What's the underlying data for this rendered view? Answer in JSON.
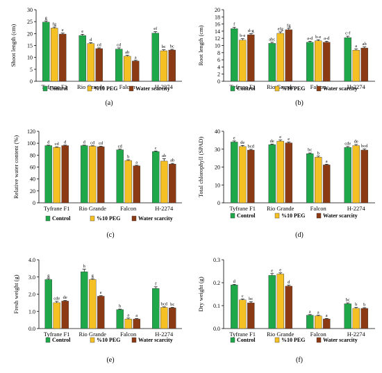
{
  "colors": {
    "control": "#1fa84a",
    "peg": "#f5c023",
    "water": "#8b3a14"
  },
  "chart_data": [
    {
      "type": "bar",
      "panel_label": "(a)",
      "ylabel": "Shoot length (cm)",
      "ylim": [
        0,
        30
      ],
      "yticks": [
        0,
        5,
        10,
        15,
        20,
        25,
        30
      ],
      "categories": [
        "Tyfrane F1",
        "Rio Grande",
        "Falcon",
        "H-2274"
      ],
      "series": [
        {
          "name": "Control",
          "values": [
            24.8,
            19.2,
            13.5,
            20.2
          ],
          "errors": [
            0.5,
            0.5,
            0.5,
            0.6
          ],
          "letters": [
            "g",
            "e",
            "cd",
            "ef"
          ]
        },
        {
          "name": "%10 PEG",
          "values": [
            22.3,
            15.8,
            10.5,
            12.8
          ],
          "errors": [
            0.4,
            0.4,
            0.4,
            0.4
          ],
          "letters": [
            "fg",
            "d",
            "ab",
            "bc"
          ]
        },
        {
          "name": "Water scarcity",
          "values": [
            19.8,
            13.7,
            8.5,
            13.1
          ],
          "errors": [
            0.4,
            0.3,
            0.3,
            0.3
          ],
          "letters": [
            "e",
            "cd",
            "a",
            "bc"
          ]
        }
      ]
    },
    {
      "type": "bar",
      "panel_label": "(b)",
      "ylabel": "Root length (cm)",
      "ylim": [
        0,
        20
      ],
      "yticks": [
        0,
        2,
        4,
        6,
        8,
        10,
        12,
        14,
        16,
        18,
        20
      ],
      "categories": [
        "Tyfrane F1",
        "Rio Grande",
        "Falcon",
        "H-2274"
      ],
      "series": [
        {
          "name": "Control",
          "values": [
            14.7,
            10.6,
            10.9,
            12.2
          ],
          "errors": [
            0.4,
            0.3,
            0.3,
            0.4
          ],
          "letters": [
            "f",
            "abc",
            "a-d",
            "c-f"
          ]
        },
        {
          "name": "%10 PEG",
          "values": [
            11.5,
            13.4,
            11.3,
            8.7
          ],
          "errors": [
            0.4,
            0.4,
            0.3,
            0.3
          ],
          "letters": [
            "b-e",
            "efg",
            "b-e",
            "a"
          ]
        },
        {
          "name": "Water scarcity",
          "values": [
            13.0,
            14.4,
            10.9,
            9.3
          ],
          "errors": [
            0.3,
            0.4,
            0.3,
            0.3
          ],
          "letters": [
            "d-g",
            "fg",
            "a-d",
            "ab"
          ]
        }
      ]
    },
    {
      "type": "bar",
      "panel_label": "(c)",
      "ylabel": "Relative water content (%)",
      "ylim": [
        0,
        120
      ],
      "yticks": [
        0,
        20,
        40,
        60,
        80,
        100,
        120
      ],
      "categories": [
        "Tyfrane F1",
        "Rio Grande",
        "Falcon",
        "H-2274"
      ],
      "series": [
        {
          "name": "Control",
          "values": [
            96,
            96,
            89,
            86
          ],
          "errors": [
            0.8,
            0.8,
            1.0,
            1.0
          ],
          "letters": [
            "d",
            "d",
            "cd",
            "c"
          ]
        },
        {
          "name": "%10 PEG",
          "values": [
            93,
            95,
            71,
            70
          ],
          "errors": [
            0.8,
            0.8,
            1.2,
            4.0
          ],
          "letters": [
            "cd",
            "cd",
            "b",
            "ab"
          ]
        },
        {
          "name": "Water scarcity",
          "values": [
            96,
            94,
            62,
            65
          ],
          "errors": [
            0.8,
            0.8,
            1.0,
            1.2
          ],
          "letters": [
            "d",
            "cd",
            "a",
            "ab"
          ]
        }
      ]
    },
    {
      "type": "bar",
      "panel_label": "(d)",
      "ylabel": "Total chlorophyll (SPAD)",
      "ylim": [
        0,
        40
      ],
      "yticks": [
        0,
        10,
        20,
        30,
        40
      ],
      "categories": [
        "Tyfrane F1",
        "Rio Grande",
        "Falcon",
        "H-2274"
      ],
      "series": [
        {
          "name": "Control",
          "values": [
            34.0,
            32.5,
            27.5,
            31.0
          ],
          "errors": [
            0.6,
            0.4,
            0.4,
            0.5
          ],
          "letters": [
            "e",
            "de",
            "bc",
            "cde"
          ]
        },
        {
          "name": "%10 PEG",
          "values": [
            31.5,
            34.5,
            25.5,
            32.0
          ],
          "errors": [
            0.6,
            0.6,
            0.6,
            0.6
          ],
          "letters": [
            "de",
            "e",
            "b",
            "de"
          ]
        },
        {
          "name": "Water scarcity",
          "values": [
            29.5,
            33.5,
            21.2,
            29.5
          ],
          "errors": [
            0.4,
            0.5,
            0.4,
            0.6
          ],
          "letters": [
            "bcd",
            "e",
            "a",
            "bcd"
          ]
        }
      ]
    },
    {
      "type": "bar",
      "panel_label": "(e)",
      "ylabel": "Fresh weight (g)",
      "ylim": [
        0,
        4.0
      ],
      "yticks": [
        "0.0",
        "1.0",
        "2.0",
        "3.0",
        "4.0"
      ],
      "categories": [
        "Tyfrane F1",
        "Rio Grande",
        "Falcon",
        "H-2274"
      ],
      "series": [
        {
          "name": "Control",
          "values": [
            2.85,
            3.3,
            1.1,
            2.33
          ],
          "errors": [
            0.06,
            0.15,
            0.03,
            0.1
          ],
          "letters": [
            "g",
            "h",
            "b",
            "f"
          ]
        },
        {
          "name": "%10 PEG",
          "values": [
            1.5,
            2.85,
            0.55,
            1.23
          ],
          "errors": [
            0.08,
            0.05,
            0.06,
            0.03
          ],
          "letters": [
            "cde",
            "g",
            "a",
            "bcd"
          ]
        },
        {
          "name": "Water scarcity",
          "values": [
            1.6,
            1.88,
            0.55,
            1.2
          ],
          "errors": [
            0.03,
            0.03,
            0.03,
            0.03
          ],
          "letters": [
            "de",
            "e",
            "a",
            "bc"
          ]
        }
      ]
    },
    {
      "type": "bar",
      "panel_label": "(f)",
      "ylabel": "Dry weight (g)",
      "ylim": [
        0,
        0.3
      ],
      "yticks": [
        "0.0",
        "0.1",
        "0.2",
        "0.3"
      ],
      "categories": [
        "Tyfrane F1",
        "Rio Grande",
        "Falcon",
        "H-2274"
      ],
      "series": [
        {
          "name": "Control",
          "values": [
            0.19,
            0.232,
            0.058,
            0.108
          ],
          "errors": [
            0.003,
            0.008,
            0.003,
            0.004
          ],
          "letters": [
            "d",
            "e",
            "a",
            "bc"
          ]
        },
        {
          "name": "%10 PEG",
          "values": [
            0.125,
            0.238,
            0.055,
            0.088
          ],
          "errors": [
            0.004,
            0.005,
            0.003,
            0.004
          ],
          "letters": [
            "c",
            "e",
            "a",
            "b"
          ]
        },
        {
          "name": "Water scarcity",
          "values": [
            0.112,
            0.185,
            0.042,
            0.088
          ],
          "errors": [
            0.005,
            0.004,
            0.002,
            0.003
          ],
          "letters": [
            "bc",
            "d",
            "a",
            "b"
          ]
        }
      ]
    }
  ]
}
